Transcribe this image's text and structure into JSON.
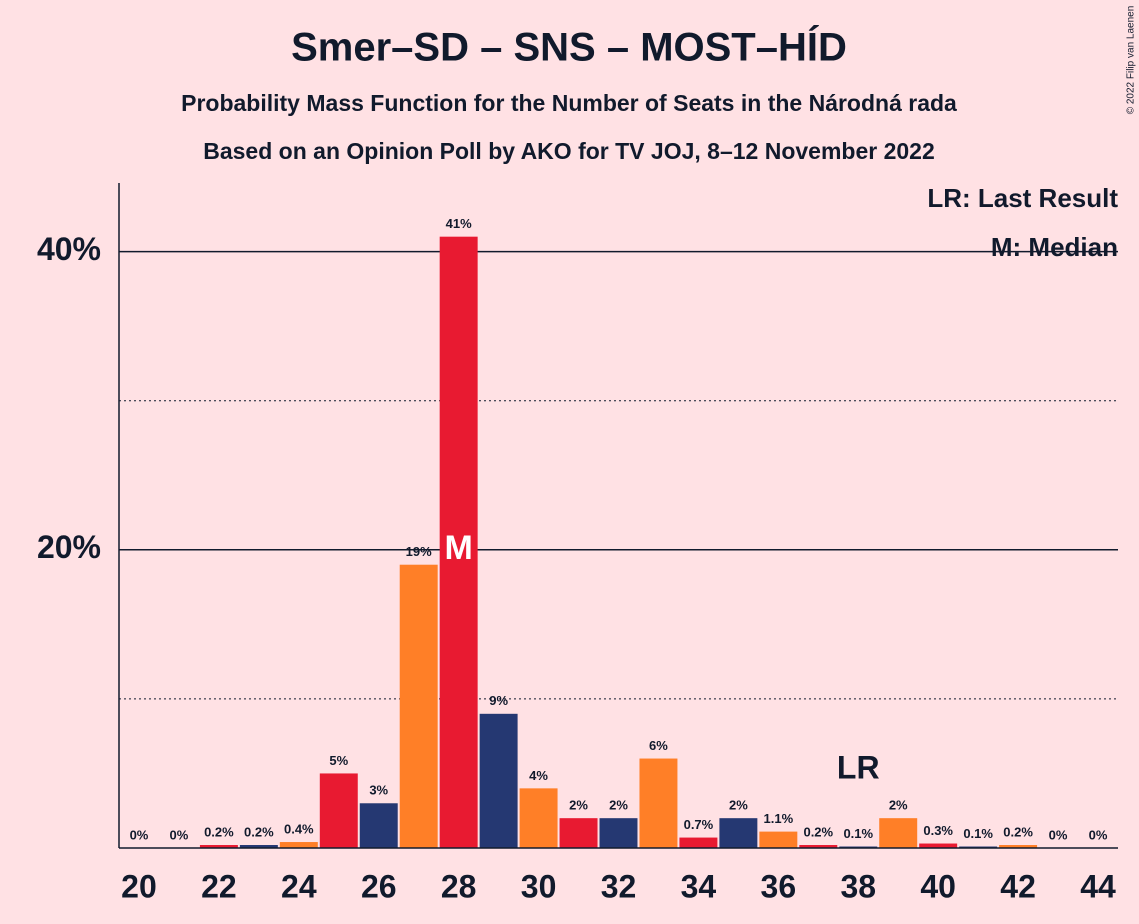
{
  "chart_data": {
    "type": "bar",
    "title": "Smer–SD – SNS – MOST–HÍD",
    "subtitle": "Probability Mass Function for the Number of Seats in the Národná rada",
    "subtitle2": "Based on an Opinion Poll by AKO for TV JOJ, 8–12 November 2022",
    "copyright": "© 2022 Filip van Laenen",
    "legend_lr": "LR: Last Result",
    "legend_median": "M: Median",
    "x": [
      20,
      21,
      22,
      23,
      24,
      25,
      26,
      27,
      28,
      29,
      30,
      31,
      32,
      33,
      34,
      35,
      36,
      37,
      38,
      39,
      40,
      41,
      42,
      43,
      44
    ],
    "values": [
      0,
      0,
      0.2,
      0.2,
      0.4,
      5,
      3,
      19,
      41,
      9,
      4,
      2,
      2,
      6,
      0.7,
      2,
      1.1,
      0.2,
      0.1,
      2,
      0.3,
      0.1,
      0.2,
      0,
      0
    ],
    "value_labels": [
      "0%",
      "0%",
      "0.2%",
      "0.2%",
      "0.4%",
      "5%",
      "3%",
      "19%",
      "41%",
      "9%",
      "4%",
      "2%",
      "2%",
      "6%",
      "0.7%",
      "2%",
      "1.1%",
      "0.2%",
      "0.1%",
      "2%",
      "0.3%",
      "0.1%",
      "0.2%",
      "0%",
      "0%"
    ],
    "palette": [
      "#253872",
      "#ff7f27",
      "#e81a31"
    ],
    "xlim": [
      19.5,
      44.5
    ],
    "xticks": [
      20,
      22,
      24,
      26,
      28,
      30,
      32,
      34,
      36,
      38,
      40,
      42,
      44
    ],
    "ylim": [
      0,
      44.6
    ],
    "yticks": [
      {
        "value": 20,
        "label": "20%"
      },
      {
        "value": 40,
        "label": "40%"
      }
    ],
    "minor_yticks": [
      10,
      30
    ],
    "median": {
      "x": 28,
      "label": "M"
    },
    "last_result": {
      "x": 38,
      "label": "LR"
    }
  }
}
